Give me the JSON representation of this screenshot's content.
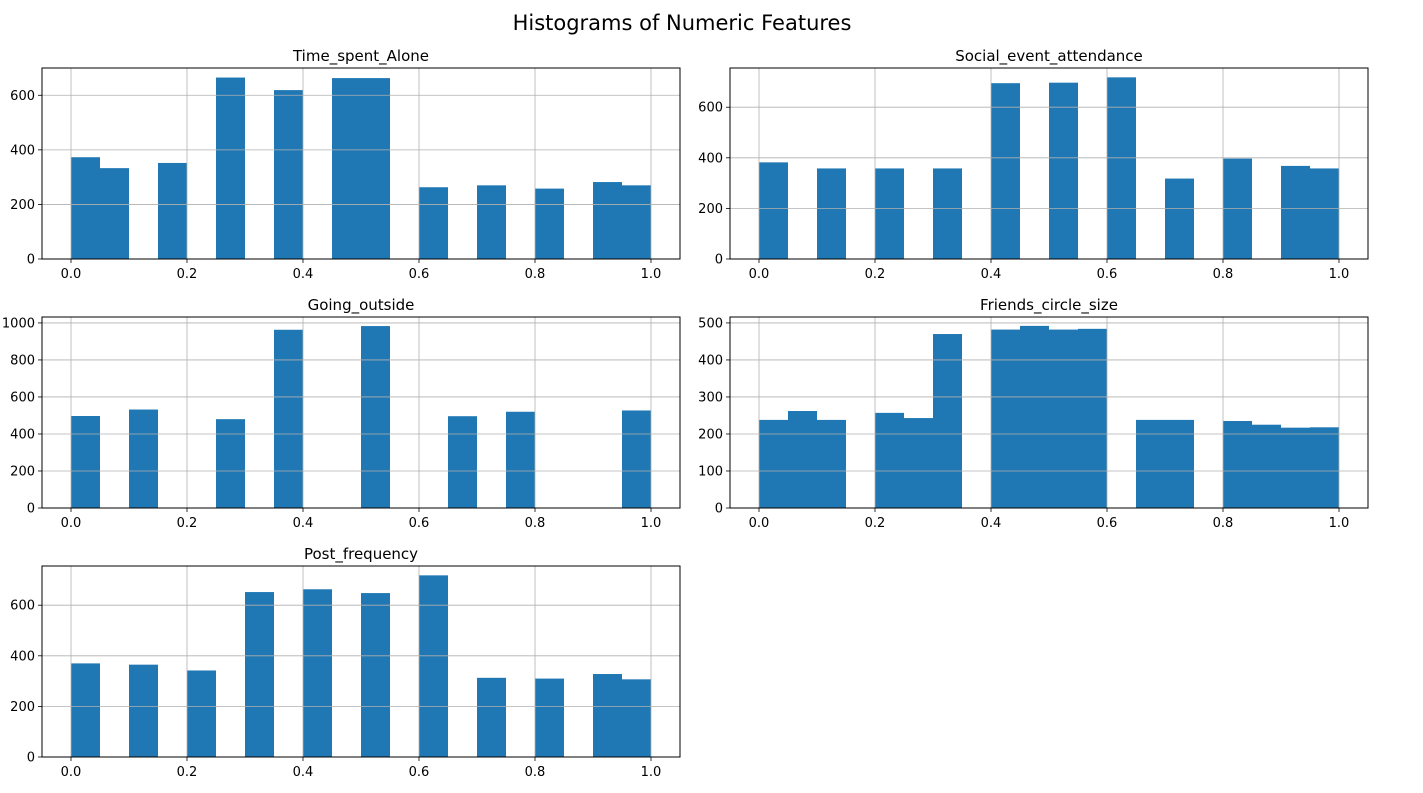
{
  "title": "Histograms of Numeric Features",
  "colors": {
    "bar": "#1f77b4",
    "grid": "#b0b0b0",
    "axis": "#000000"
  },
  "chart_data": [
    {
      "type": "bar",
      "title": "Time_spent_Alone",
      "bin_range": [
        0,
        1
      ],
      "bins": 20,
      "values": [
        373,
        333,
        0,
        352,
        0,
        665,
        0,
        619,
        0,
        663,
        663,
        0,
        263,
        0,
        270,
        0,
        258,
        0,
        282,
        270
      ],
      "xlim": [
        -0.05,
        1.05
      ],
      "ylim": [
        0,
        700
      ],
      "xticks": [
        0.0,
        0.2,
        0.4,
        0.6,
        0.8,
        1.0
      ],
      "xtick_labels": [
        "0.0",
        "0.2",
        "0.4",
        "0.6",
        "0.8",
        "1.0"
      ],
      "yticks": [
        0,
        200,
        400,
        600
      ],
      "ytick_labels": [
        "0",
        "200",
        "400",
        "600"
      ],
      "grid": true
    },
    {
      "type": "bar",
      "title": "Social_event_attendance",
      "bin_range": [
        0,
        1
      ],
      "bins": 20,
      "values": [
        382,
        0,
        358,
        0,
        358,
        0,
        358,
        0,
        695,
        0,
        697,
        0,
        718,
        0,
        318,
        0,
        397,
        0,
        368,
        358
      ],
      "xlim": [
        -0.05,
        1.05
      ],
      "ylim": [
        0,
        755
      ],
      "xticks": [
        0.0,
        0.2,
        0.4,
        0.6,
        0.8,
        1.0
      ],
      "xtick_labels": [
        "0.0",
        "0.2",
        "0.4",
        "0.6",
        "0.8",
        "1.0"
      ],
      "yticks": [
        0,
        200,
        400,
        600
      ],
      "ytick_labels": [
        "0",
        "200",
        "400",
        "600"
      ],
      "grid": true
    },
    {
      "type": "bar",
      "title": "Going_outside",
      "bin_range": [
        0,
        1
      ],
      "bins": 20,
      "values": [
        497,
        0,
        532,
        0,
        0,
        480,
        0,
        963,
        0,
        0,
        983,
        0,
        0,
        496,
        0,
        520,
        0,
        0,
        0,
        527
      ],
      "xlim": [
        -0.05,
        1.05
      ],
      "ylim": [
        0,
        1032
      ],
      "xticks": [
        0.0,
        0.2,
        0.4,
        0.6,
        0.8,
        1.0
      ],
      "xtick_labels": [
        "0.0",
        "0.2",
        "0.4",
        "0.6",
        "0.8",
        "1.0"
      ],
      "yticks": [
        0,
        200,
        400,
        600,
        800,
        1000
      ],
      "ytick_labels": [
        "0",
        "200",
        "400",
        "600",
        "800",
        "1000"
      ],
      "grid": true
    },
    {
      "type": "bar",
      "title": "Friends_circle_size",
      "bin_range": [
        0,
        1
      ],
      "bins": 20,
      "values": [
        238,
        262,
        238,
        0,
        257,
        243,
        470,
        0,
        482,
        492,
        482,
        484,
        0,
        238,
        238,
        0,
        235,
        225,
        217,
        218
      ],
      "xlim": [
        -0.05,
        1.05
      ],
      "ylim": [
        0,
        516
      ],
      "xticks": [
        0.0,
        0.2,
        0.4,
        0.6,
        0.8,
        1.0
      ],
      "xtick_labels": [
        "0.0",
        "0.2",
        "0.4",
        "0.6",
        "0.8",
        "1.0"
      ],
      "yticks": [
        0,
        100,
        200,
        300,
        400,
        500
      ],
      "ytick_labels": [
        "0",
        "100",
        "200",
        "300",
        "400",
        "500"
      ],
      "grid": true
    },
    {
      "type": "bar",
      "title": "Post_frequency",
      "bin_range": [
        0,
        1
      ],
      "bins": 20,
      "values": [
        370,
        0,
        365,
        0,
        342,
        0,
        652,
        0,
        663,
        0,
        648,
        0,
        718,
        0,
        313,
        0,
        310,
        0,
        328,
        307
      ],
      "xlim": [
        -0.05,
        1.05
      ],
      "ylim": [
        0,
        755
      ],
      "xticks": [
        0.0,
        0.2,
        0.4,
        0.6,
        0.8,
        1.0
      ],
      "xtick_labels": [
        "0.0",
        "0.2",
        "0.4",
        "0.6",
        "0.8",
        "1.0"
      ],
      "yticks": [
        0,
        200,
        400,
        600
      ],
      "ytick_labels": [
        "0",
        "200",
        "400",
        "600"
      ],
      "grid": true
    }
  ]
}
